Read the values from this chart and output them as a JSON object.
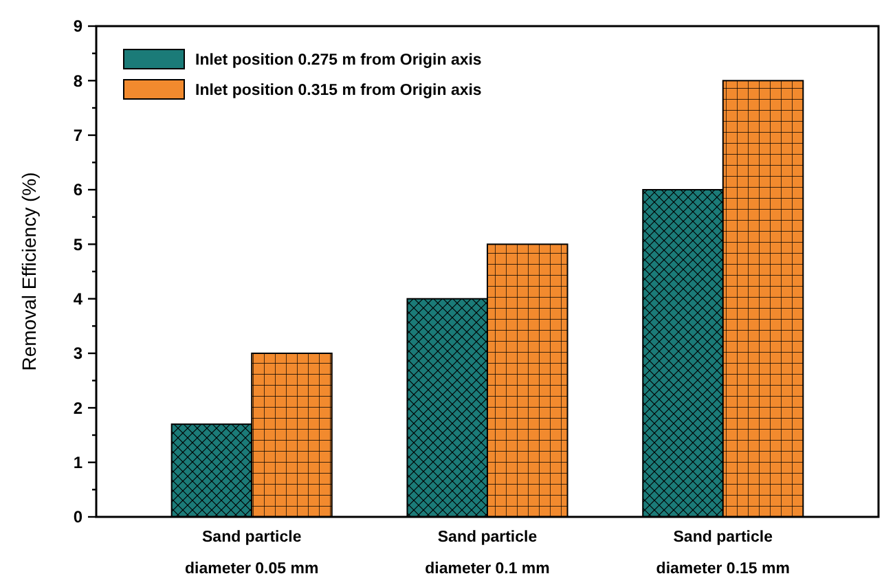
{
  "chart_data": {
    "type": "bar",
    "ylabel": "Removal Efficiency (%)",
    "categories": [
      "Sand particle diameter 0.05 mm",
      "Sand particle diameter 0.1 mm",
      "Sand particle diameter 0.15 mm"
    ],
    "series": [
      {
        "name": "Inlet position 0.275 m from Origin axis",
        "color": "#1b7b78",
        "values": [
          1.7,
          4,
          6
        ]
      },
      {
        "name": "Inlet position 0.315 m from Origin axis",
        "color": "#f28a2e",
        "values": [
          3,
          5,
          8
        ]
      }
    ],
    "ylim": [
      0,
      9
    ],
    "yticks": [
      0,
      {
        "value": 0.5,
        "label": null
      },
      1,
      {
        "value": 1.5,
        "label": null
      },
      2,
      {
        "value": 2.5,
        "label": null
      },
      3,
      {
        "value": 3.5,
        "label": null
      },
      4,
      {
        "value": 4.5,
        "label": null
      },
      5,
      {
        "value": 5.5,
        "label": null
      },
      6,
      {
        "value": 6.5,
        "label": null
      },
      7,
      {
        "value": 7.5,
        "label": null
      },
      8,
      {
        "value": 8.5,
        "label": null
      },
      9
    ],
    "grid": false,
    "legend": "top left"
  }
}
